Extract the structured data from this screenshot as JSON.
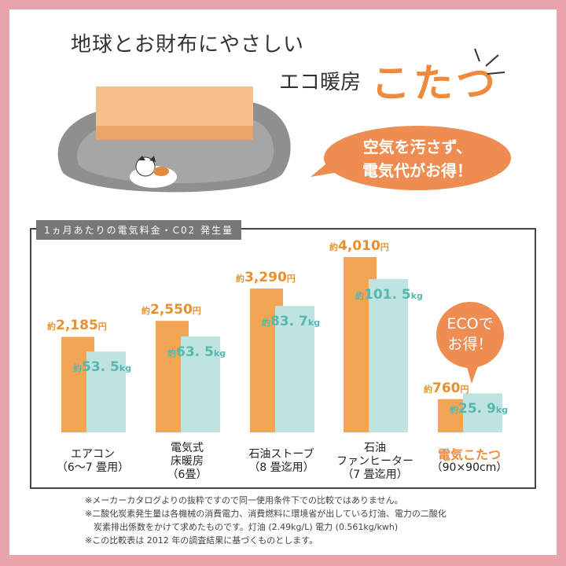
{
  "headline": {
    "line1": "地球とお財布にやさしい",
    "line2": "エコ暖房",
    "line3": "こたつ"
  },
  "bubble": {
    "line1": "空気を汚さず、",
    "line2": "電気代がお得！"
  },
  "eco_badge": {
    "line1": "ECOで",
    "line2": "お得！"
  },
  "colors": {
    "frame": "#e9a3aa",
    "orange": "#f2a655",
    "teal": "#bfe4df",
    "accent": "#ef8a3c"
  },
  "chart_data": {
    "type": "bar",
    "title": "1ヵ月あたりの電気料金・C02 発生量",
    "categories": [
      {
        "name": "エアコン",
        "sub": "（6～7 畳用）"
      },
      {
        "name": "電気式\n床暖房",
        "sub": "（6畳）"
      },
      {
        "name": "石油ストーブ",
        "sub": "（8 畳迄用）"
      },
      {
        "name": "石油\nファンヒーター",
        "sub": "（7 畳迄用）"
      },
      {
        "name": "電気こたつ",
        "sub": "（90×90cm）",
        "highlight": true
      }
    ],
    "series": [
      {
        "unit": "円",
        "prefix": "約",
        "values": [
          2185,
          2550,
          3290,
          4010,
          760
        ],
        "labels": [
          "2,185",
          "2,550",
          "3,290",
          "4,010",
          "760"
        ],
        "color": "#f2a655"
      },
      {
        "unit": "kg",
        "prefix": "約",
        "values": [
          53.5,
          63.5,
          83.7,
          101.5,
          25.9
        ],
        "labels": [
          "53. 5",
          "63. 5",
          "83. 7",
          "101. 5",
          "25. 9"
        ],
        "color": "#bfe4df"
      }
    ]
  },
  "notes": [
    "※メーカーカタログよりの抜粋ですので同一使用条件下での比較ではありません。",
    "※二酸化炭素発生量は各機械の消費電力、消費燃料に環境省が出している灯油、電力の二酸化",
    "　炭素排出係数をかけて求めたものです。灯油 (2.49kg/L) 電力 (0.561kg/kwh)",
    "※この比較表は 2012 年の調査結果に基づくものとします。"
  ]
}
